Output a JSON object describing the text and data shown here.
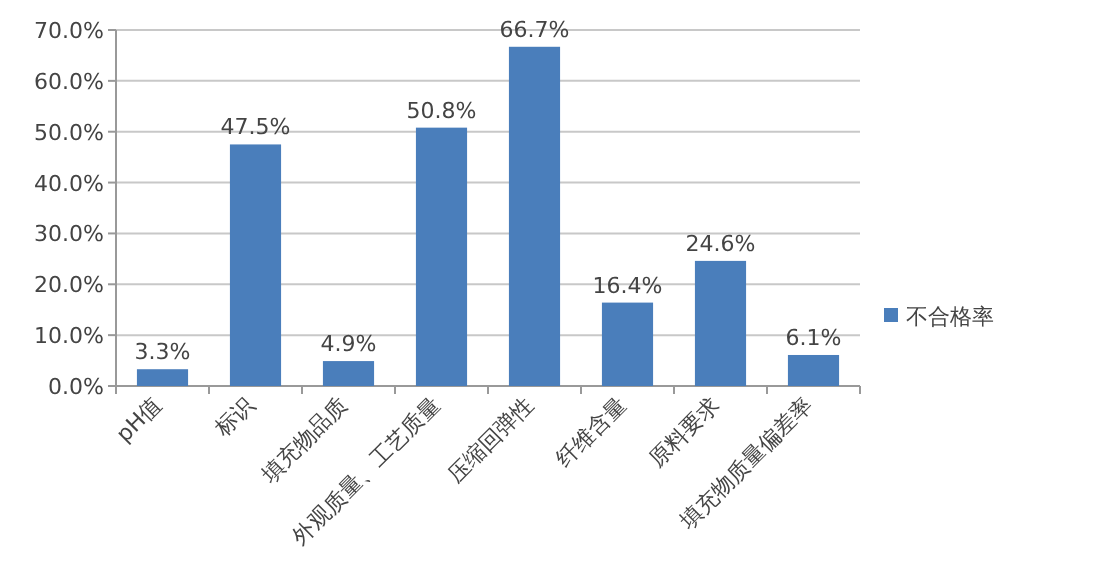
{
  "chart_data": {
    "type": "bar",
    "categories": [
      "pH值",
      "标识",
      "填充物品质",
      "外观质量、工艺质量",
      "压缩回弹性",
      "纤维含量",
      "原料要求",
      "填充物质量偏差率"
    ],
    "series": [
      {
        "name": "不合格率",
        "color": "#4a7ebb",
        "values": [
          3.3,
          47.5,
          4.9,
          50.8,
          66.7,
          16.4,
          24.6,
          6.1
        ],
        "value_labels": [
          "3.3%",
          "47.5%",
          "4.9%",
          "50.8%",
          "66.7%",
          "16.4%",
          "24.6%",
          "6.1%"
        ]
      }
    ],
    "ylim": [
      0,
      70
    ],
    "yticks": [
      {
        "value": 0,
        "label": "0.0%"
      },
      {
        "value": 10,
        "label": "10.0%"
      },
      {
        "value": 20,
        "label": "20.0%"
      },
      {
        "value": 30,
        "label": "30.0%"
      },
      {
        "value": 40,
        "label": "40.0%"
      },
      {
        "value": 50,
        "label": "50.0%"
      },
      {
        "value": 60,
        "label": "60.0%"
      },
      {
        "value": 70,
        "label": "70.0%"
      }
    ],
    "grid": "y",
    "legend": "right"
  }
}
